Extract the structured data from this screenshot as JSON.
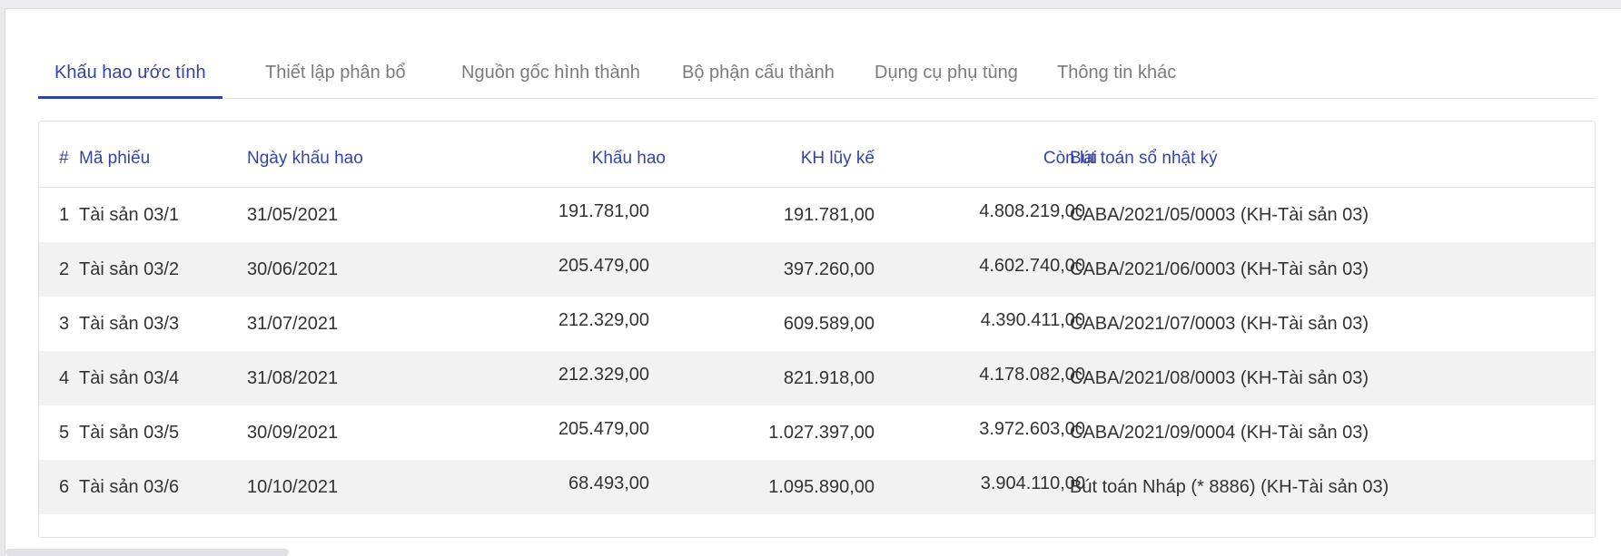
{
  "tabs": [
    {
      "label": "Khấu hao ước tính",
      "active": true
    },
    {
      "label": "Thiết lập phân bổ",
      "active": false
    },
    {
      "label": "Nguồn gốc hình thành",
      "active": false
    },
    {
      "label": "Bộ phận cấu thành",
      "active": false
    },
    {
      "label": "Dụng cụ phụ tùng",
      "active": false
    },
    {
      "label": "Thông tin khác",
      "active": false
    }
  ],
  "table": {
    "headers": {
      "index": "#",
      "code": "Mã phiếu",
      "date": "Ngày khấu hao",
      "depreciation": "Khấu hao",
      "accumulated": "KH lũy kế",
      "remaining": "Còn lại",
      "journal": "Bút toán sổ nhật ký"
    },
    "rows": [
      {
        "index": "1",
        "code": "Tài sản 03/1",
        "date": "31/05/2021",
        "depreciation": "191.781,00",
        "accumulated": "191.781,00",
        "remaining": "4.808.219,00",
        "journal": "CABA/2021/05/0003 (KH-Tài sản 03)"
      },
      {
        "index": "2",
        "code": "Tài sản 03/2",
        "date": "30/06/2021",
        "depreciation": "205.479,00",
        "accumulated": "397.260,00",
        "remaining": "4.602.740,00",
        "journal": "CABA/2021/06/0003 (KH-Tài sản 03)"
      },
      {
        "index": "3",
        "code": "Tài sản 03/3",
        "date": "31/07/2021",
        "depreciation": "212.329,00",
        "accumulated": "609.589,00",
        "remaining": "4.390.411,00",
        "journal": "CABA/2021/07/0003 (KH-Tài sản 03)"
      },
      {
        "index": "4",
        "code": "Tài sản 03/4",
        "date": "31/08/2021",
        "depreciation": "212.329,00",
        "accumulated": "821.918,00",
        "remaining": "4.178.082,00",
        "journal": "CABA/2021/08/0003 (KH-Tài sản 03)"
      },
      {
        "index": "5",
        "code": "Tài sản 03/5",
        "date": "30/09/2021",
        "depreciation": "205.479,00",
        "accumulated": "1.027.397,00",
        "remaining": "3.972.603,00",
        "journal": "CABA/2021/09/0004 (KH-Tài sản 03)"
      },
      {
        "index": "6",
        "code": "Tài sản 03/6",
        "date": "10/10/2021",
        "depreciation": "68.493,00",
        "accumulated": "1.095.890,00",
        "remaining": "3.904.110,00",
        "journal": "Bút toán Nháp (* 8886) (KH-Tài sản 03)"
      }
    ]
  },
  "colors": {
    "accent": "#3344a8",
    "tab_inactive": "#7b7b7b",
    "row_alt": "#f2f2f2"
  }
}
